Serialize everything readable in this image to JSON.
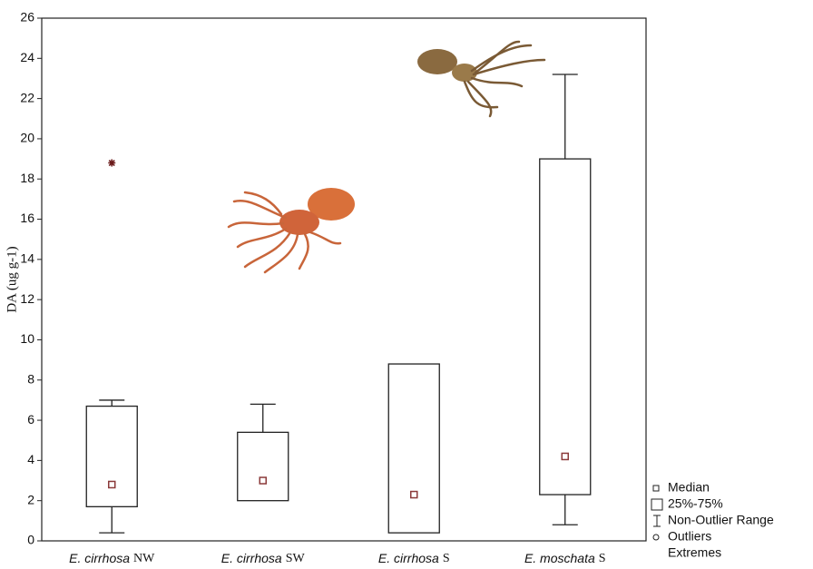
{
  "chart_data": {
    "type": "box",
    "y_label": "DA (ug g-1)",
    "categories": [
      {
        "species": "E. cirrhosa",
        "site": "NW"
      },
      {
        "species": "E. cirrhosa",
        "site": "SW"
      },
      {
        "species": "E. cirrhosa",
        "site": "S"
      },
      {
        "species": "E. moschata",
        "site": "S"
      }
    ],
    "boxes": [
      {
        "whisker_low": 0.4,
        "q1": 1.7,
        "median": 2.8,
        "q3": 6.7,
        "whisker_high": 7.0,
        "extremes": [
          18.8
        ]
      },
      {
        "whisker_low": null,
        "q1": 2.0,
        "median": 3.0,
        "q3": 5.4,
        "whisker_high": 6.8,
        "extremes": []
      },
      {
        "whisker_low": null,
        "q1": 0.4,
        "median": 2.3,
        "q3": 8.8,
        "whisker_high": null,
        "extremes": []
      },
      {
        "whisker_low": 0.8,
        "q1": 2.3,
        "median": 4.2,
        "q3": 19.0,
        "whisker_high": 23.2,
        "extremes": []
      }
    ],
    "median_color": "#8b3a3a",
    "extreme_color": "#6b1a1a",
    "ylim": [
      0,
      26
    ],
    "yticks": [
      0,
      2,
      4,
      6,
      8,
      10,
      12,
      14,
      16,
      18,
      20,
      22,
      24,
      26
    ],
    "legend": [
      "Median",
      "25%-75%",
      "Non-Outlier Range",
      "Outliers",
      "Extremes"
    ],
    "legend_position": "lower right"
  }
}
